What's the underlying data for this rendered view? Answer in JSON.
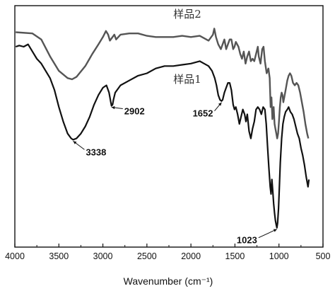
{
  "chart_data": {
    "type": "line",
    "title": "",
    "xlabel": "Wavenumber (cm⁻¹)",
    "ylabel": "",
    "xlim": [
      4000,
      500
    ],
    "x_reversed": true,
    "x_ticks": [
      4000,
      3500,
      3000,
      2500,
      2000,
      1500,
      1000,
      500
    ],
    "x_tick_labels": [
      "4000",
      "3500",
      "3000",
      "2500",
      "2000",
      "1500",
      "1000",
      "500"
    ],
    "y_ticks_shown": false,
    "ylim": [
      0,
      100
    ],
    "grid": false,
    "legend": "none",
    "series": [
      {
        "name": "样品2",
        "color": "#555555",
        "points": [
          [
            3990,
            89
          ],
          [
            3800,
            88.5
          ],
          [
            3700,
            86
          ],
          [
            3600,
            79
          ],
          [
            3500,
            73
          ],
          [
            3400,
            70
          ],
          [
            3350,
            69.5
          ],
          [
            3300,
            70.5
          ],
          [
            3200,
            75
          ],
          [
            3120,
            80
          ],
          [
            3050,
            84
          ],
          [
            3000,
            87
          ],
          [
            2965,
            89.5
          ],
          [
            2940,
            88
          ],
          [
            2920,
            85.5
          ],
          [
            2900,
            86.5
          ],
          [
            2870,
            88
          ],
          [
            2850,
            86
          ],
          [
            2800,
            88
          ],
          [
            2700,
            88.5
          ],
          [
            2600,
            88.5
          ],
          [
            2500,
            87.5
          ],
          [
            2400,
            87
          ],
          [
            2300,
            87
          ],
          [
            2200,
            87
          ],
          [
            2100,
            87.5
          ],
          [
            2000,
            87
          ],
          [
            1900,
            87.5
          ],
          [
            1800,
            85.5
          ],
          [
            1750,
            88
          ],
          [
            1735,
            90.5
          ],
          [
            1715,
            87
          ],
          [
            1690,
            84
          ],
          [
            1660,
            82
          ],
          [
            1640,
            84
          ],
          [
            1620,
            86
          ],
          [
            1600,
            82
          ],
          [
            1580,
            84
          ],
          [
            1560,
            86
          ],
          [
            1540,
            86
          ],
          [
            1520,
            82
          ],
          [
            1505,
            83
          ],
          [
            1490,
            85
          ],
          [
            1460,
            83
          ],
          [
            1440,
            80
          ],
          [
            1420,
            78
          ],
          [
            1400,
            81
          ],
          [
            1380,
            76
          ],
          [
            1360,
            79
          ],
          [
            1340,
            81
          ],
          [
            1320,
            77
          ],
          [
            1300,
            78
          ],
          [
            1280,
            77
          ],
          [
            1260,
            80
          ],
          [
            1240,
            83
          ],
          [
            1230,
            79
          ],
          [
            1210,
            76
          ],
          [
            1190,
            82
          ],
          [
            1175,
            83
          ],
          [
            1160,
            77
          ],
          [
            1140,
            72
          ],
          [
            1120,
            74
          ],
          [
            1105,
            70
          ],
          [
            1095,
            58
          ],
          [
            1085,
            62
          ],
          [
            1075,
            53
          ],
          [
            1060,
            58
          ],
          [
            1050,
            51
          ],
          [
            1040,
            49
          ],
          [
            1030,
            47
          ],
          [
            1020,
            45
          ],
          [
            1010,
            47
          ],
          [
            1000,
            52
          ],
          [
            990,
            58
          ],
          [
            980,
            62
          ],
          [
            970,
            64
          ],
          [
            960,
            63
          ],
          [
            950,
            60
          ],
          [
            940,
            62
          ],
          [
            925,
            65
          ],
          [
            905,
            69
          ],
          [
            890,
            71
          ],
          [
            875,
            72
          ],
          [
            860,
            71
          ],
          [
            840,
            68
          ],
          [
            820,
            67
          ],
          [
            800,
            68
          ],
          [
            780,
            67
          ],
          [
            760,
            64
          ],
          [
            740,
            60
          ],
          [
            720,
            56
          ],
          [
            700,
            51
          ],
          [
            680,
            47
          ],
          [
            666,
            45
          ]
        ]
      },
      {
        "name": "样品1",
        "color": "#111111",
        "points": [
          [
            3990,
            83
          ],
          [
            3950,
            83.5
          ],
          [
            3900,
            83
          ],
          [
            3850,
            84
          ],
          [
            3800,
            81
          ],
          [
            3750,
            78
          ],
          [
            3700,
            76
          ],
          [
            3650,
            73
          ],
          [
            3600,
            70
          ],
          [
            3550,
            65
          ],
          [
            3500,
            58
          ],
          [
            3450,
            52
          ],
          [
            3400,
            47
          ],
          [
            3360,
            45
          ],
          [
            3338,
            44.5
          ],
          [
            3300,
            45
          ],
          [
            3250,
            47
          ],
          [
            3200,
            50
          ],
          [
            3150,
            54
          ],
          [
            3100,
            59
          ],
          [
            3050,
            63
          ],
          [
            3000,
            66
          ],
          [
            2960,
            67
          ],
          [
            2930,
            64
          ],
          [
            2910,
            60
          ],
          [
            2902,
            58.5
          ],
          [
            2890,
            59
          ],
          [
            2880,
            61
          ],
          [
            2860,
            64
          ],
          [
            2800,
            67
          ],
          [
            2700,
            69
          ],
          [
            2600,
            71
          ],
          [
            2500,
            72
          ],
          [
            2400,
            74
          ],
          [
            2300,
            75
          ],
          [
            2200,
            75
          ],
          [
            2100,
            75.5
          ],
          [
            2000,
            76
          ],
          [
            1900,
            77
          ],
          [
            1850,
            76
          ],
          [
            1800,
            75
          ],
          [
            1760,
            73
          ],
          [
            1730,
            70
          ],
          [
            1710,
            67
          ],
          [
            1690,
            63
          ],
          [
            1670,
            61
          ],
          [
            1652,
            60.5
          ],
          [
            1640,
            61
          ],
          [
            1620,
            64
          ],
          [
            1600,
            66
          ],
          [
            1580,
            68
          ],
          [
            1560,
            68
          ],
          [
            1540,
            65
          ],
          [
            1520,
            59
          ],
          [
            1505,
            57
          ],
          [
            1490,
            58
          ],
          [
            1470,
            55
          ],
          [
            1450,
            51
          ],
          [
            1430,
            54
          ],
          [
            1410,
            57
          ],
          [
            1390,
            55
          ],
          [
            1375,
            52
          ],
          [
            1360,
            55
          ],
          [
            1340,
            48
          ],
          [
            1320,
            45
          ],
          [
            1300,
            49
          ],
          [
            1280,
            52
          ],
          [
            1260,
            57
          ],
          [
            1240,
            58
          ],
          [
            1220,
            57
          ],
          [
            1200,
            55
          ],
          [
            1180,
            58
          ],
          [
            1160,
            57
          ],
          [
            1145,
            51
          ],
          [
            1130,
            42
          ],
          [
            1115,
            33
          ],
          [
            1100,
            25
          ],
          [
            1090,
            22
          ],
          [
            1080,
            28
          ],
          [
            1070,
            23
          ],
          [
            1060,
            18
          ],
          [
            1050,
            14
          ],
          [
            1040,
            11
          ],
          [
            1030,
            9
          ],
          [
            1023,
            8
          ],
          [
            1015,
            10
          ],
          [
            1005,
            16
          ],
          [
            995,
            25
          ],
          [
            985,
            35
          ],
          [
            970,
            45
          ],
          [
            955,
            51
          ],
          [
            940,
            54
          ],
          [
            925,
            56
          ],
          [
            905,
            57
          ],
          [
            890,
            58
          ],
          [
            870,
            56
          ],
          [
            850,
            55
          ],
          [
            830,
            53
          ],
          [
            810,
            50
          ],
          [
            790,
            47
          ],
          [
            770,
            45
          ],
          [
            750,
            41
          ],
          [
            730,
            38
          ],
          [
            710,
            34
          ],
          [
            690,
            29
          ],
          [
            670,
            25
          ],
          [
            660,
            28
          ]
        ]
      }
    ],
    "annotations": [
      {
        "label": "3338",
        "x": 3338,
        "y": 44.5
      },
      {
        "label": "2902",
        "x": 2902,
        "y": 58.5
      },
      {
        "label": "1652",
        "x": 1652,
        "y": 60.5
      },
      {
        "label": "1023",
        "x": 1023,
        "y": 8
      }
    ],
    "series_labels": [
      {
        "text": "样品2",
        "near_x": 2200,
        "near_y": 95
      },
      {
        "text": "样品1",
        "near_x": 2200,
        "near_y": 68
      }
    ]
  }
}
